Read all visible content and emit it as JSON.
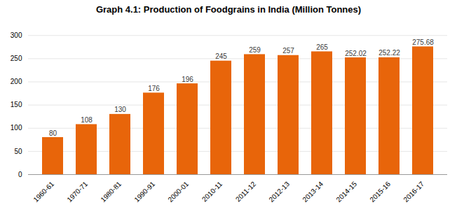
{
  "chart_data": {
    "type": "bar",
    "title": "Graph 4.1: Production of Foodgrains in India (Million Tonnes)",
    "categories": [
      "1960-61",
      "1970-71",
      "1980-81",
      "1990-91",
      "2000-01",
      "2010-11",
      "2011-12",
      "2012-13",
      "2013-14",
      "2014-15",
      "2015-16",
      "2016-17"
    ],
    "values": [
      80,
      108,
      130,
      176,
      196,
      245,
      259,
      257,
      265,
      252.02,
      252.22,
      275.68
    ],
    "color": "#E8650A",
    "ylim": [
      0,
      320
    ],
    "yticks": [
      0,
      50,
      100,
      150,
      200,
      250,
      300
    ],
    "grid": true,
    "data_labels": true
  }
}
